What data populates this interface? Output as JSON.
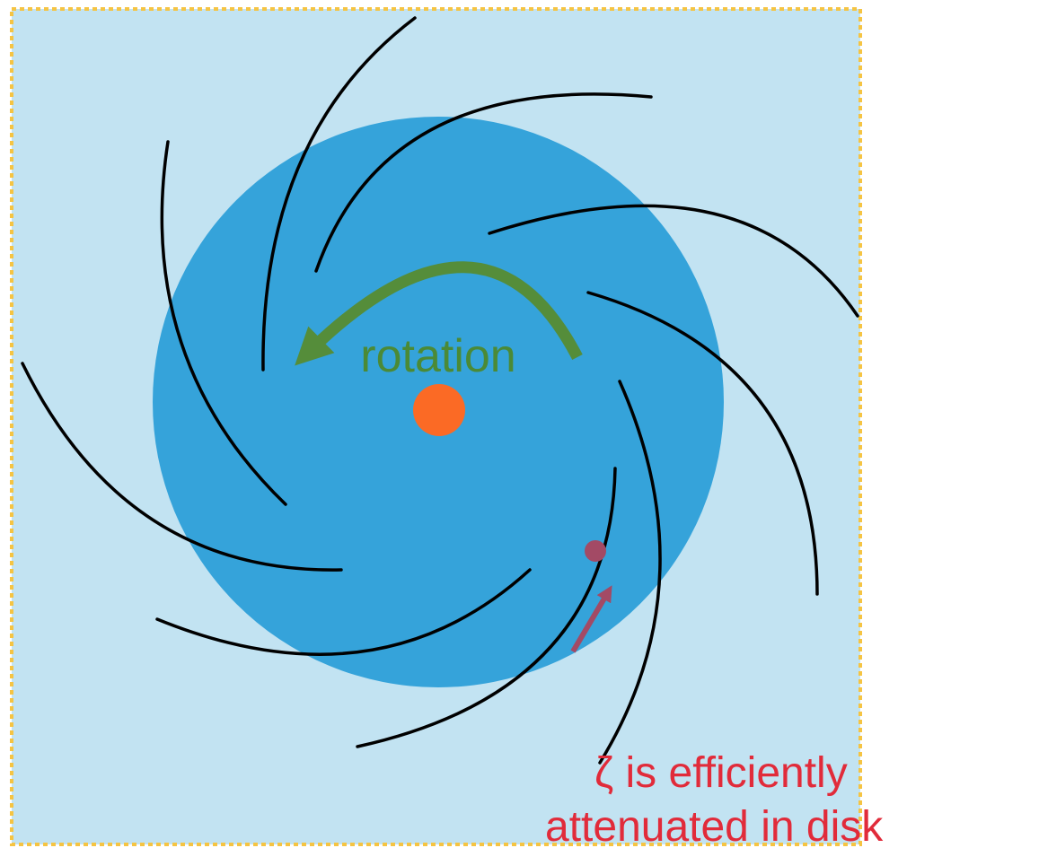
{
  "labels": {
    "rotation": "rotation",
    "note_line1": "ζ is efficiently",
    "note_line2": "attenuated in disk"
  },
  "colors": {
    "background_box": "#c2e3f2",
    "box_border": "#f5c443",
    "disk": "#35a3da",
    "center_star": "#fb6a25",
    "spiral_arms": "#000000",
    "rotation_arrow": "#558d3a",
    "rotation_text": "#4b8a36",
    "particle": "#a34a65",
    "note_text": "#e12b3a"
  },
  "icons": {
    "rotation_arrow": "curved-arrow-left",
    "particle_arrow": "straight-arrow-up-right"
  }
}
